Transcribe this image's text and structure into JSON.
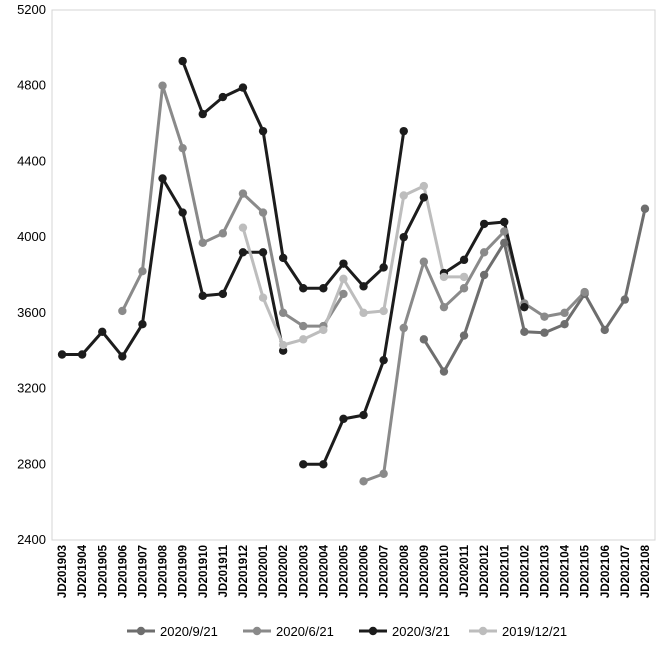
{
  "chart_data": {
    "type": "line",
    "title": "",
    "xlabel": "",
    "ylabel": "",
    "ylim": [
      2400,
      5200
    ],
    "yticks": [
      2400,
      2800,
      3200,
      3600,
      4000,
      4400,
      4800,
      5200
    ],
    "ytick_labels": [
      "2400",
      "2800",
      "3200",
      "3600",
      "4000",
      "4400",
      "4800",
      "5200"
    ],
    "grid": false,
    "legend_position": "bottom",
    "categories": [
      "JD201903",
      "JD201904",
      "JD201905",
      "JD201906",
      "JD201907",
      "JD201908",
      "JD201909",
      "JD201910",
      "JD201911",
      "JD201912",
      "JD202001",
      "JD202002",
      "JD202003",
      "JD202004",
      "JD202005",
      "JD202006",
      "JD202007",
      "JD202008",
      "JD202009",
      "JD202010",
      "JD202011",
      "JD202012",
      "JD202101",
      "JD202102",
      "JD202103",
      "JD202104",
      "JD202105",
      "JD202106",
      "JD202107",
      "JD202108"
    ],
    "series": [
      {
        "name": "2020/9/21",
        "color": "#6e6e6e",
        "segments": [
          [
            18,
            [
              3460,
              3290,
              3480,
              3800,
              3970,
              3500,
              3495,
              3540,
              3700,
              3510,
              3670,
              4150
            ]
          ]
        ]
      },
      {
        "name": "2020/6/21",
        "color": "#8a8a8a",
        "segments": [
          [
            3,
            [
              3610,
              3820,
              4800,
              4470,
              3970,
              4020,
              4230,
              4130,
              3600,
              3530,
              3530,
              3700
            ]
          ],
          [
            15,
            [
              2710,
              2750,
              3520,
              3870,
              3630,
              3730,
              3920,
              4030,
              3650,
              3580,
              3600,
              3710
            ]
          ]
        ]
      },
      {
        "name": "2020/3/21",
        "color": "#1c1c1c",
        "segments": [
          [
            0,
            [
              3380,
              3380,
              3500,
              3370,
              3540,
              4310,
              4130,
              3690,
              3700,
              3920,
              3920,
              3400
            ]
          ],
          [
            6,
            [
              4930,
              4650,
              4740,
              4790,
              4560,
              3890,
              3730,
              3730,
              3860,
              3740,
              3840,
              4560
            ]
          ],
          [
            12,
            [
              2800,
              2800,
              3040,
              3060,
              3350,
              4000,
              4210
            ]
          ],
          [
            19,
            [
              3810,
              3880,
              4070,
              4080,
              3630
            ]
          ]
        ]
      },
      {
        "name": "2019/12/21",
        "color": "#bdbdbd",
        "segments": [
          [
            9,
            [
              4050,
              3680,
              3430,
              3460,
              3510,
              3780,
              3600,
              3610,
              4220,
              4270,
              3790,
              3790
            ]
          ]
        ]
      }
    ]
  }
}
